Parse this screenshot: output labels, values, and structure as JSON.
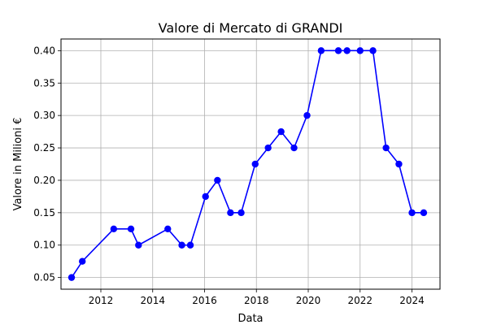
{
  "chart_data": {
    "type": "line",
    "title": "Valore di Mercato di GRANDI",
    "xlabel": "Data",
    "ylabel": "Valore in Milioni €",
    "xlim": [
      "2010-06-19",
      "2025-01-31"
    ],
    "ylim": [
      0.032,
      0.418
    ],
    "x_ticks": [
      2012,
      2014,
      2016,
      2018,
      2020,
      2022,
      2024
    ],
    "y_ticks": [
      0.05,
      0.1,
      0.15,
      0.2,
      0.25,
      0.3,
      0.35,
      0.4
    ],
    "y_tick_labels": [
      "0.05",
      "0.10",
      "0.15",
      "0.20",
      "0.25",
      "0.30",
      "0.35",
      "0.40"
    ],
    "grid": true,
    "series": [
      {
        "color": "#0000ff",
        "points": [
          {
            "x": "2010-11-15",
            "y": 0.05
          },
          {
            "x": "2011-04-15",
            "y": 0.075
          },
          {
            "x": "2012-07-01",
            "y": 0.125
          },
          {
            "x": "2013-03-01",
            "y": 0.125
          },
          {
            "x": "2013-06-15",
            "y": 0.1
          },
          {
            "x": "2014-08-01",
            "y": 0.125
          },
          {
            "x": "2015-02-15",
            "y": 0.1
          },
          {
            "x": "2015-06-15",
            "y": 0.1
          },
          {
            "x": "2016-01-15",
            "y": 0.175
          },
          {
            "x": "2016-07-01",
            "y": 0.2
          },
          {
            "x": "2017-01-01",
            "y": 0.15
          },
          {
            "x": "2017-06-01",
            "y": 0.15
          },
          {
            "x": "2017-12-15",
            "y": 0.225
          },
          {
            "x": "2018-06-15",
            "y": 0.25
          },
          {
            "x": "2018-12-15",
            "y": 0.275
          },
          {
            "x": "2019-06-15",
            "y": 0.25
          },
          {
            "x": "2019-12-15",
            "y": 0.3
          },
          {
            "x": "2020-07-01",
            "y": 0.4
          },
          {
            "x": "2021-03-01",
            "y": 0.4
          },
          {
            "x": "2021-07-01",
            "y": 0.4
          },
          {
            "x": "2022-01-01",
            "y": 0.4
          },
          {
            "x": "2022-07-01",
            "y": 0.4
          },
          {
            "x": "2023-01-01",
            "y": 0.25
          },
          {
            "x": "2023-07-01",
            "y": 0.225
          },
          {
            "x": "2024-01-01",
            "y": 0.15
          },
          {
            "x": "2024-06-15",
            "y": 0.15
          }
        ]
      }
    ]
  }
}
